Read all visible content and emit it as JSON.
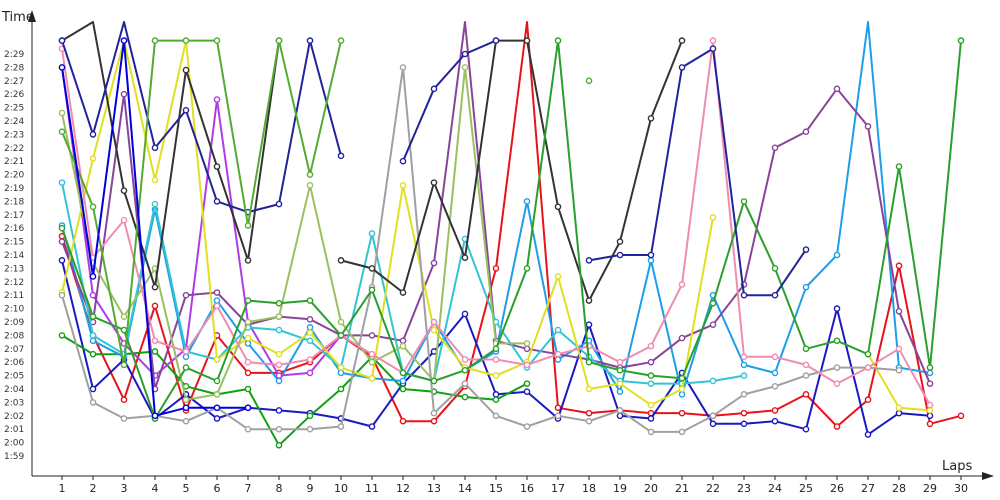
{
  "chart_data": {
    "type": "line",
    "title": "",
    "xlabel": "Laps",
    "ylabel": "Time",
    "ylim": [
      119,
      150
    ],
    "xlim": [
      0,
      31
    ],
    "grid": false,
    "legend": "none",
    "y_tick_labels": [
      "1:59",
      "2:00",
      "2:01",
      "2:02",
      "2:03",
      "2:04",
      "2:05",
      "2:06",
      "2:07",
      "2:08",
      "2:09",
      "2:10",
      "2:11",
      "2:12",
      "2:13",
      "2:14",
      "2:15",
      "2:16",
      "2:17",
      "2:18",
      "2:19",
      "2:20",
      "2:21",
      "2:22",
      "2:23",
      "2:24",
      "2:25",
      "2:26",
      "2:27",
      "2:28",
      "2:29"
    ],
    "x": [
      1,
      2,
      3,
      4,
      5,
      6,
      7,
      8,
      9,
      10,
      11,
      12,
      13,
      14,
      15,
      16,
      17,
      18,
      19,
      20,
      21,
      22,
      23,
      24,
      25,
      26,
      27,
      28,
      29,
      30
    ],
    "series": [
      {
        "color": "#e8121a",
        "values": [
          135.4,
          128.0,
          123.2,
          130.2,
          122.4,
          128.0,
          125.2,
          125.2,
          126.0,
          128.0,
          126.4,
          121.6,
          121.6,
          124.2,
          133.0,
          161.0,
          122.6,
          122.2,
          122.4,
          122.2,
          122.2,
          122.0,
          122.2,
          122.4,
          123.6,
          121.2,
          123.2,
          133.2,
          121.4,
          122.0
        ]
      },
      {
        "color": "#1a1ac0",
        "values": [
          133.6,
          124.0,
          126.2,
          121.8,
          123.6,
          121.8,
          122.6,
          122.4,
          122.2,
          121.8,
          121.2,
          124.4,
          126.8,
          129.6,
          123.6,
          123.8,
          121.8,
          128.8,
          122.0,
          121.8,
          125.2,
          121.4,
          121.4,
          121.6,
          121.0,
          130.0,
          120.6,
          122.2,
          122.0,
          null
        ]
      },
      {
        "color": "#12a012",
        "values": [
          128.0,
          126.6,
          126.6,
          126.8,
          124.2,
          123.6,
          124.0,
          119.8,
          122.0,
          124.0,
          126.4,
          124.0,
          123.8,
          123.4,
          123.2,
          124.4,
          null,
          null,
          null,
          null,
          null,
          null,
          null,
          null,
          null,
          null,
          null,
          null,
          null,
          null
        ]
      },
      {
        "color": "#1e9ee8",
        "values": [
          136.2,
          127.6,
          126.4,
          137.4,
          126.4,
          130.6,
          127.4,
          124.6,
          128.6,
          125.2,
          124.8,
          124.6,
          129.0,
          125.4,
          126.8,
          138.0,
          126.2,
          127.6,
          123.8,
          133.6,
          123.6,
          131.0,
          125.8,
          125.2,
          131.6,
          134.0,
          152.0,
          125.6,
          125.2,
          null
        ]
      },
      {
        "color": "#b03ae8",
        "values": [
          148.0,
          131.0,
          127.4,
          125.0,
          127.0,
          145.6,
          129.0,
          125.0,
          125.2,
          128.0,
          null,
          null,
          null,
          null,
          null,
          null,
          null,
          null,
          null,
          null,
          null,
          null,
          null,
          null,
          null,
          null,
          null,
          null,
          null,
          null
        ]
      },
      {
        "color": "#884499",
        "values": [
          135.0,
          129.0,
          146.0,
          124.0,
          131.0,
          131.2,
          128.8,
          129.4,
          129.2,
          128.0,
          128.0,
          127.6,
          133.4,
          152.0,
          127.6,
          127.0,
          126.6,
          126.2,
          125.6,
          126.0,
          127.8,
          128.8,
          131.8,
          142.0,
          143.2,
          146.4,
          143.6,
          129.8,
          124.4,
          null
        ]
      },
      {
        "color": "#33c4d4",
        "values": [
          139.4,
          128.0,
          126.6,
          137.8,
          126.8,
          126.2,
          128.6,
          128.4,
          127.6,
          125.6,
          135.6,
          125.2,
          124.6,
          135.2,
          129.0,
          125.6,
          128.4,
          126.4,
          124.6,
          124.4,
          124.4,
          124.6,
          125.0,
          null,
          null,
          null,
          null,
          null,
          null,
          null
        ]
      },
      {
        "color": "#e0e020",
        "values": [
          131.2,
          141.2,
          150.0,
          139.6,
          150.0,
          126.2,
          127.8,
          126.6,
          128.2,
          125.6,
          124.8,
          139.2,
          128.4,
          125.6,
          125.0,
          126.0,
          132.4,
          124.0,
          124.4,
          122.8,
          124.0,
          136.8,
          null,
          null,
          null,
          null,
          126.6,
          122.6,
          122.4,
          null
        ]
      },
      {
        "color": "#9ac060",
        "values": [
          144.6,
          133.4,
          129.4,
          133.0,
          123.2,
          123.6,
          129.0,
          129.4,
          139.2,
          129.0,
          126.0,
          127.2,
          124.6,
          148.0,
          127.4,
          127.4,
          null,
          null,
          null,
          null,
          null,
          null,
          null,
          null,
          null,
          null,
          null,
          null,
          null,
          null
        ]
      },
      {
        "color": "#a0a0a0",
        "values": [
          131.0,
          123.0,
          121.8,
          122.0,
          121.6,
          122.6,
          121.0,
          121.0,
          121.0,
          121.2,
          131.6,
          148.0,
          122.2,
          124.4,
          122.0,
          121.2,
          122.0,
          121.6,
          122.4,
          120.8,
          120.8,
          122.0,
          123.6,
          124.2,
          125.0,
          125.6,
          125.6,
          125.4,
          null,
          null
        ]
      },
      {
        "color": "#f08cb0",
        "values": [
          149.4,
          133.8,
          136.6,
          127.6,
          126.8,
          130.2,
          126.0,
          125.8,
          126.2,
          128.0,
          126.6,
          125.2,
          129.0,
          126.2,
          126.2,
          125.8,
          126.6,
          127.2,
          126.0,
          127.2,
          131.8,
          150.0,
          126.4,
          126.4,
          125.8,
          124.4,
          125.6,
          127.0,
          122.8,
          null
        ]
      },
      {
        "color": "#333333",
        "values": [
          150.0,
          152.0,
          138.8,
          131.6,
          147.8,
          140.6,
          133.6,
          150.0,
          null,
          133.6,
          133.0,
          131.2,
          139.4,
          133.8,
          150.0,
          150.0,
          137.6,
          130.6,
          135.0,
          144.2,
          150.0,
          null,
          null,
          null,
          null,
          null,
          null,
          null,
          null,
          null
        ]
      },
      {
        "color": "#2aa02a",
        "values": [
          136.0,
          129.4,
          128.4,
          121.8,
          125.6,
          124.6,
          130.6,
          130.4,
          130.6,
          128.0,
          131.4,
          125.2,
          124.6,
          125.4,
          127.0,
          133.0,
          150.0,
          126.0,
          125.4,
          125.0,
          124.8,
          130.4,
          138.0,
          133.0,
          127.0,
          127.6,
          126.6,
          140.6,
          125.6,
          150.0
        ]
      },
      {
        "color": "#222299",
        "values": [
          150.0,
          143.0,
          152.0,
          142.0,
          144.8,
          138.0,
          137.2,
          137.8,
          150.0,
          141.4,
          null,
          141.0,
          146.4,
          149.0,
          150.0,
          null,
          null,
          133.6,
          134.0,
          134.0,
          148.0,
          149.4,
          131.0,
          131.0,
          134.4,
          null,
          null,
          null,
          null,
          null
        ]
      },
      {
        "color": "#55aa33",
        "values": [
          143.2,
          137.6,
          125.8,
          150.0,
          150.0,
          150.0,
          136.2,
          150.0,
          140.0,
          150.0,
          null,
          null,
          null,
          null,
          null,
          null,
          null,
          147.0,
          null,
          null,
          null,
          null,
          null,
          null,
          null,
          null,
          null,
          null,
          null,
          null
        ]
      },
      {
        "color": "#0000dd",
        "values": [
          148.0,
          132.4,
          150.0,
          122.0,
          122.6,
          122.6,
          122.6,
          null,
          null,
          null,
          null,
          null,
          null,
          null,
          null,
          null,
          null,
          null,
          null,
          null,
          null,
          null,
          null,
          null,
          null,
          null,
          null,
          null,
          null,
          null
        ]
      }
    ]
  }
}
